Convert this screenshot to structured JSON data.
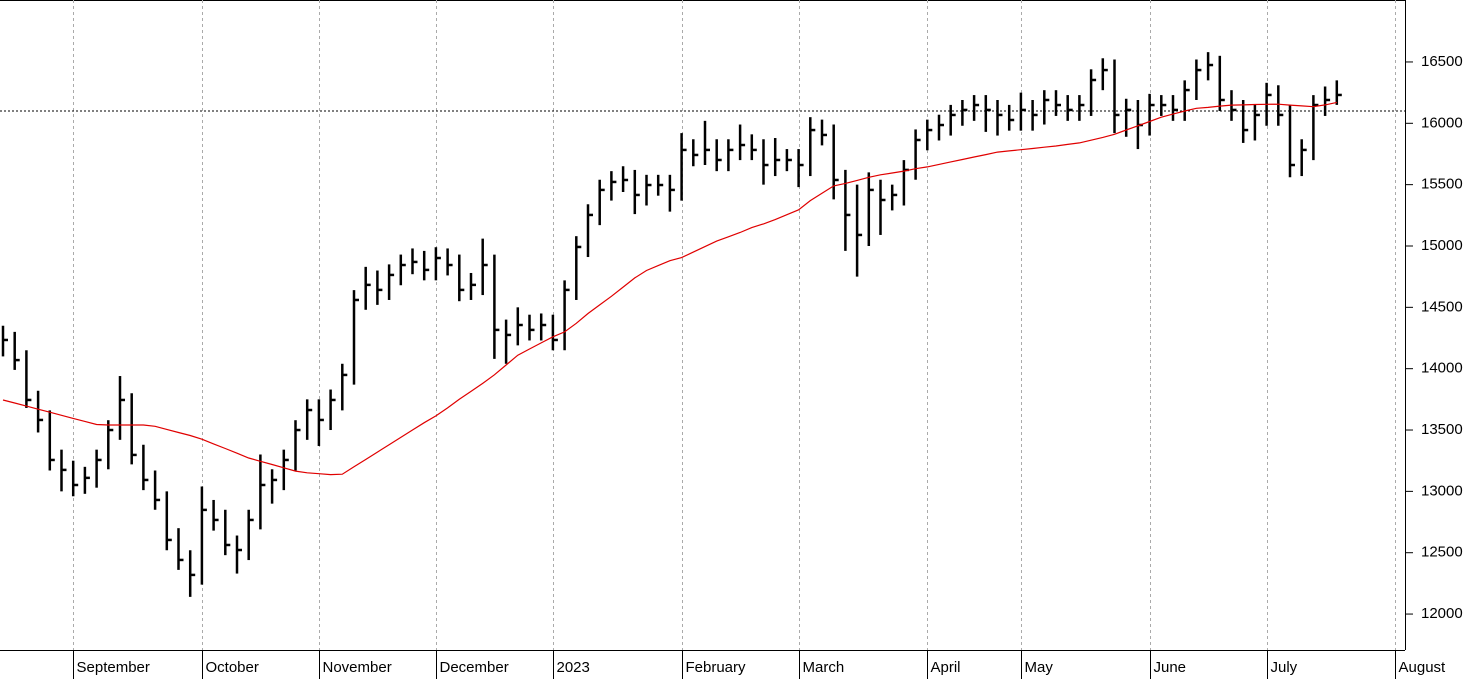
{
  "chart_data": {
    "type": "ohlc",
    "categories": [
      null,
      null,
      null,
      null,
      null,
      null,
      "September",
      null,
      null,
      null,
      null,
      null,
      null,
      null,
      null,
      null,
      null,
      "October",
      null,
      null,
      null,
      null,
      null,
      null,
      null,
      null,
      null,
      "November",
      null,
      null,
      null,
      null,
      null,
      null,
      null,
      null,
      null,
      "December",
      null,
      null,
      null,
      null,
      null,
      null,
      null,
      null,
      null,
      "2023",
      null,
      null,
      null,
      null,
      null,
      null,
      null,
      null,
      null,
      null,
      "February",
      null,
      null,
      null,
      null,
      null,
      null,
      null,
      null,
      null,
      "March",
      null,
      null,
      null,
      null,
      null,
      null,
      null,
      null,
      null,
      null,
      "April",
      null,
      null,
      null,
      null,
      null,
      null,
      null,
      "May",
      null,
      null,
      null,
      null,
      null,
      null,
      null,
      null,
      null,
      null,
      "June",
      null,
      null,
      null,
      null,
      null,
      null,
      null,
      null,
      null,
      "July",
      null,
      null,
      null,
      null,
      null,
      null,
      null,
      null,
      null,
      null,
      "August"
    ],
    "high": [
      14350,
      14300,
      14150,
      13820,
      13660,
      13340,
      13250,
      13200,
      13340,
      13580,
      13940,
      13800,
      13380,
      13170,
      13000,
      12700,
      12520,
      13040,
      12930,
      12850,
      12640,
      12850,
      13300,
      13180,
      13340,
      13580,
      13750,
      13750,
      13830,
      14040,
      14640,
      14830,
      14800,
      14850,
      14930,
      14980,
      14960,
      14990,
      14980,
      14930,
      14780,
      15060,
      14930,
      14400,
      14500,
      14440,
      14450,
      14440,
      14720,
      15080,
      15340,
      15540,
      15610,
      15650,
      15620,
      15580,
      15580,
      15580,
      15920,
      15870,
      16020,
      15870,
      15870,
      15990,
      15910,
      15870,
      15880,
      15790,
      15790,
      16050,
      16030,
      15990,
      15620,
      15500,
      15600,
      15540,
      15500,
      15700,
      15950,
      16030,
      16070,
      16150,
      16190,
      16230,
      16230,
      16190,
      16150,
      16250,
      16190,
      16270,
      16270,
      16230,
      16230,
      16440,
      16530,
      16520,
      16200,
      16190,
      16240,
      16230,
      16230,
      16350,
      16520,
      16580,
      16550,
      16270,
      16190,
      16150,
      16330,
      16310,
      16150,
      15870,
      16230,
      16300,
      16350,
      null,
      null,
      null,
      null,
      null
    ],
    "low": [
      14100,
      13990,
      13680,
      13480,
      13170,
      13000,
      12960,
      12980,
      13030,
      13180,
      13420,
      13220,
      13010,
      12850,
      12520,
      12360,
      12140,
      12240,
      12680,
      12480,
      12330,
      12440,
      12690,
      12900,
      13010,
      13170,
      13420,
      13370,
      13500,
      13660,
      13870,
      14480,
      14520,
      14560,
      14680,
      14770,
      14720,
      14720,
      14760,
      14550,
      14560,
      14600,
      14080,
      14040,
      14190,
      14230,
      14230,
      14150,
      14150,
      14560,
      14910,
      15170,
      15370,
      15440,
      15260,
      15330,
      15410,
      15280,
      15370,
      15650,
      15660,
      15610,
      15610,
      15700,
      15700,
      15500,
      15570,
      15610,
      15480,
      15570,
      15820,
      15380,
      14960,
      14750,
      15000,
      15090,
      15290,
      15330,
      15540,
      15780,
      15860,
      15900,
      15980,
      16020,
      15930,
      15900,
      15940,
      15940,
      15940,
      15990,
      16060,
      16020,
      16020,
      16060,
      16270,
      15920,
      15890,
      15790,
      15900,
      16060,
      16020,
      16020,
      16190,
      16350,
      16100,
      16020,
      15840,
      15860,
      15980,
      15980,
      15560,
      15570,
      15700,
      16060,
      16150,
      null,
      null,
      null,
      null,
      null
    ],
    "close": [
      14234,
      14070,
      13745,
      13582,
      13256,
      13175,
      13052,
      13110,
      13256,
      13500,
      13745,
      13297,
      13093,
      12930,
      12604,
      12441,
      12319,
      12849,
      12767,
      12563,
      12522,
      12767,
      13052,
      13093,
      13256,
      13500,
      13663,
      13582,
      13745,
      13949,
      14560,
      14683,
      14642,
      14764,
      14845,
      14870,
      14805,
      14902,
      14845,
      14642,
      14683,
      14845,
      14316,
      14275,
      14356,
      14316,
      14356,
      14234,
      14642,
      14992,
      15253,
      15457,
      15522,
      15538,
      15416,
      15497,
      15497,
      15457,
      15783,
      15742,
      15783,
      15701,
      15783,
      15823,
      15783,
      15660,
      15701,
      15701,
      15660,
      15945,
      15905,
      15538,
      15253,
      15090,
      15457,
      15375,
      15416,
      15620,
      15864,
      15945,
      15986,
      16068,
      16109,
      16149,
      16109,
      16068,
      16027,
      16109,
      16068,
      16190,
      16149,
      16109,
      16149,
      16353,
      16434,
      16068,
      16109,
      15986,
      16149,
      16149,
      16109,
      16271,
      16434,
      16475,
      16190,
      16109,
      15945,
      16068,
      16231,
      16068,
      15660,
      15783,
      16149,
      16190,
      16231,
      null,
      null,
      null,
      null,
      null
    ],
    "bar_color": "#000000",
    "moving_average": {
      "color": "#e00000",
      "values": [
        13745,
        13720,
        13695,
        13670,
        13645,
        13620,
        13595,
        13570,
        13545,
        13541,
        13541,
        13541,
        13541,
        13530,
        13505,
        13480,
        13455,
        13425,
        13387,
        13349,
        13311,
        13272,
        13245,
        13219,
        13192,
        13165,
        13151,
        13144,
        13137,
        13140,
        13200,
        13260,
        13320,
        13380,
        13440,
        13500,
        13560,
        13615,
        13680,
        13750,
        13815,
        13880,
        13950,
        14030,
        14110,
        14160,
        14210,
        14260,
        14300,
        14370,
        14450,
        14520,
        14590,
        14665,
        14740,
        14800,
        14840,
        14880,
        14905,
        14950,
        14995,
        15040,
        15075,
        15110,
        15150,
        15180,
        15215,
        15255,
        15295,
        15370,
        15430,
        15490,
        15510,
        15535,
        15560,
        15580,
        15595,
        15610,
        15630,
        15645,
        15665,
        15685,
        15705,
        15725,
        15745,
        15765,
        15775,
        15785,
        15795,
        15805,
        15815,
        15828,
        15840,
        15862,
        15885,
        15910,
        15945,
        15980,
        16015,
        16050,
        16075,
        16100,
        16122,
        16130,
        16140,
        16148,
        16150,
        16153,
        16155,
        16156,
        16148,
        16142,
        16135,
        16150,
        16170,
        null,
        null,
        null,
        null,
        null
      ]
    },
    "reference_line": 16100,
    "ylim": [
      11707,
      17005
    ],
    "yticks": [
      12000,
      12500,
      13000,
      13500,
      14000,
      14500,
      15000,
      15500,
      16000,
      16500
    ],
    "grid": true
  }
}
